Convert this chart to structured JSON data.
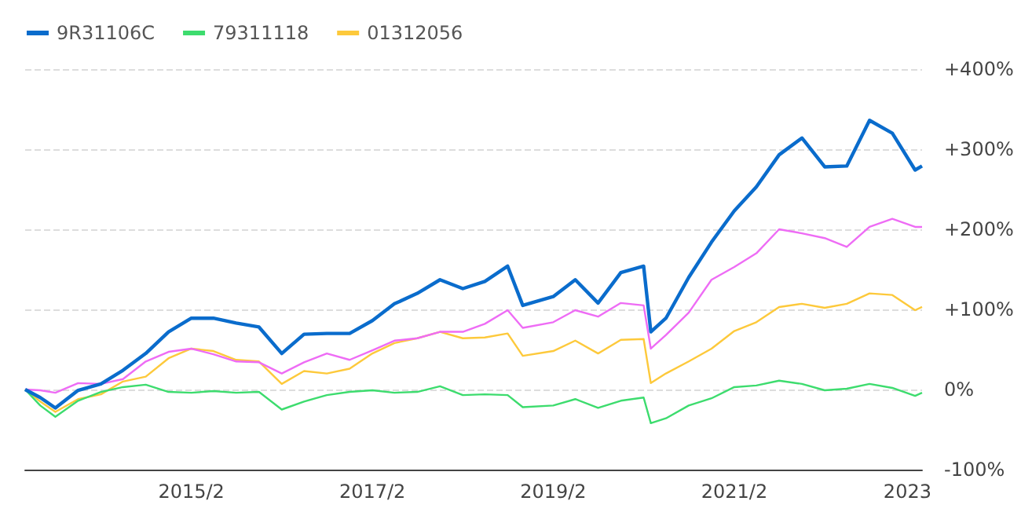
{
  "chart_data": {
    "type": "line",
    "legend": "top left",
    "grid": "y",
    "marker": "none",
    "line_style": "solid",
    "x": [
      "2013-04",
      "2013-06",
      "2013-08",
      "2013-11",
      "2014-02",
      "2014-05",
      "2014-08",
      "2014-11",
      "2015-02",
      "2015-05",
      "2015-08",
      "2015-11",
      "2016-02",
      "2016-05",
      "2016-08",
      "2016-11",
      "2017-02",
      "2017-05",
      "2017-08",
      "2017-11",
      "2018-02",
      "2018-05",
      "2018-08",
      "2018-10",
      "2019-02",
      "2019-05",
      "2019-08",
      "2019-11",
      "2020-02",
      "2020-03",
      "2020-05",
      "2020-08",
      "2020-11",
      "2021-02",
      "2021-05",
      "2021-08",
      "2021-11",
      "2022-02",
      "2022-05",
      "2022-08",
      "2022-11",
      "2023-02",
      "2023-03"
    ],
    "series": [
      {
        "name": "9R31106C",
        "color": "#0a6ccc",
        "values": [
          0,
          -10,
          -23,
          -1,
          7,
          24,
          45,
          72,
          89,
          89,
          83,
          78,
          45,
          69,
          70,
          70,
          86,
          107,
          120,
          137,
          126,
          135,
          154,
          105,
          116,
          137,
          108,
          146,
          154,
          72,
          89,
          140,
          184,
          223,
          253,
          293,
          314,
          278,
          279,
          336,
          320,
          274,
          279
        ]
      },
      {
        "color": "#ee6cf5",
        "values": [
          0,
          -1,
          -4,
          8,
          7,
          13,
          35,
          47,
          51,
          44,
          35,
          34,
          20,
          34,
          45,
          37,
          49,
          61,
          64,
          72,
          72,
          82,
          99,
          77,
          84,
          99,
          91,
          108,
          105,
          51,
          68,
          96,
          137,
          153,
          170,
          200,
          195,
          189,
          178,
          203,
          213,
          203,
          203
        ]
      },
      {
        "name": "79311118",
        "color": "#3ddc6e",
        "values": [
          0,
          -20,
          -34,
          -14,
          -3,
          3,
          6,
          -3,
          -4,
          -2,
          -4,
          -3,
          -25,
          -15,
          -7,
          -3,
          -1,
          -4,
          -3,
          4,
          -7,
          -6,
          -7,
          -22,
          -20,
          -12,
          -23,
          -14,
          -10,
          -42,
          -36,
          -20,
          -11,
          3,
          5,
          11,
          7,
          -1,
          1,
          7,
          2,
          -8,
          -4
        ]
      },
      {
        "name": "01312056",
        "color": "#fdc93b",
        "values": [
          0,
          -15,
          -28,
          -12,
          -6,
          10,
          16,
          39,
          51,
          48,
          37,
          35,
          7,
          23,
          20,
          26,
          45,
          58,
          64,
          72,
          64,
          65,
          70,
          42,
          48,
          61,
          45,
          62,
          63,
          8,
          20,
          35,
          51,
          73,
          84,
          103,
          107,
          102,
          107,
          120,
          118,
          99,
          103
        ]
      }
    ],
    "xlim": [
      "2013-04",
      "2023-03"
    ],
    "xticks": [
      {
        "value": "2015-02",
        "label": "2015/2"
      },
      {
        "value": "2017-02",
        "label": "2017/2"
      },
      {
        "value": "2019-02",
        "label": "2019/2"
      },
      {
        "value": "2021-02",
        "label": "2021/2"
      },
      {
        "value": "2023-01",
        "label": "2023"
      }
    ],
    "ylim": [
      -100,
      400
    ],
    "yticks": [
      {
        "value": -100,
        "label": "-100%"
      },
      {
        "value": 0,
        "label": "0%"
      },
      {
        "value": 100,
        "label": "+100%"
      },
      {
        "value": 200,
        "label": "+200%"
      },
      {
        "value": 300,
        "label": "+300%"
      },
      {
        "value": 400,
        "label": "+400%"
      }
    ]
  }
}
